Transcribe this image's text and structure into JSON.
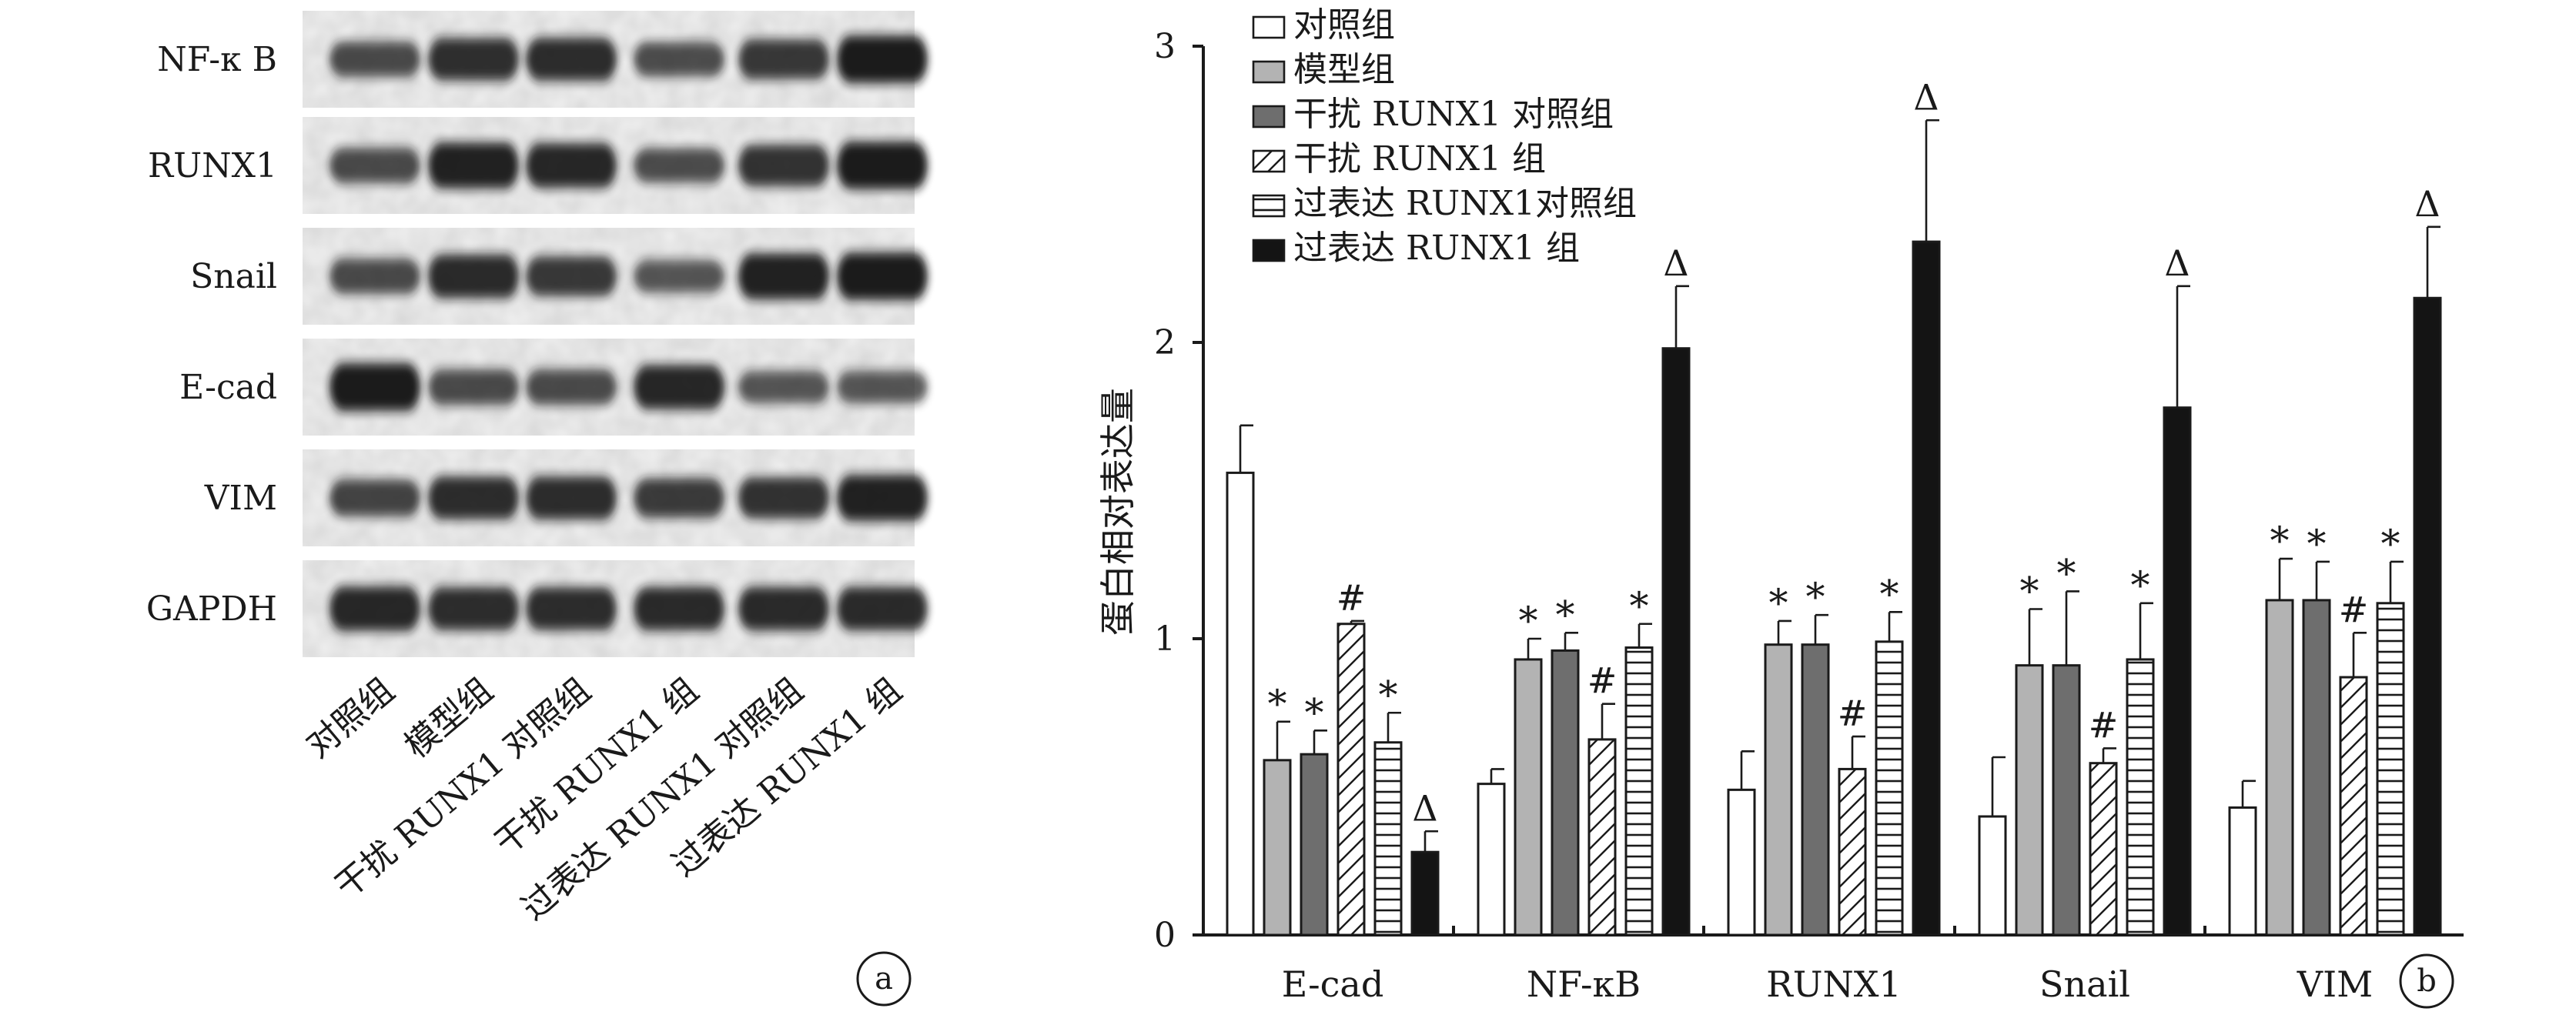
{
  "panel_a": {
    "panel_label": "a",
    "row_labels": [
      "NF-κ B",
      "RUNX1",
      "Snail",
      "E-cad",
      "VIM",
      "GAPDH"
    ],
    "lane_labels": [
      "对照组",
      "模型组",
      "干扰 RUNX1 对照组",
      "干扰 RUNX1 组",
      "过表达 RUNX1 对照组",
      "过表达 RUNX1 组"
    ],
    "band_intensity": [
      [
        0.55,
        0.78,
        0.8,
        0.52,
        0.7,
        0.95
      ],
      [
        0.55,
        0.9,
        0.85,
        0.52,
        0.75,
        0.95
      ],
      [
        0.55,
        0.82,
        0.7,
        0.45,
        0.9,
        0.95
      ],
      [
        0.95,
        0.55,
        0.55,
        0.85,
        0.45,
        0.45
      ],
      [
        0.6,
        0.8,
        0.8,
        0.68,
        0.75,
        0.9
      ],
      [
        0.85,
        0.8,
        0.8,
        0.82,
        0.82,
        0.82
      ]
    ],
    "blot_color": "#161616"
  },
  "panel_b": {
    "panel_label": "b"
  },
  "chart_data": {
    "type": "bar",
    "ylabel": "蛋白相对表达量",
    "xlabel": "",
    "title": "",
    "ylim": [
      0,
      3
    ],
    "yticks": [
      "0",
      "1",
      "2",
      "3"
    ],
    "categories": [
      "E-cad",
      "NF-κB",
      "RUNX1",
      "Snail",
      "VIM"
    ],
    "legend_position": "top-left",
    "series": [
      {
        "name": "对照组",
        "fill": "open",
        "values": [
          1.56,
          0.51,
          0.49,
          0.4,
          0.43
        ],
        "errors": [
          0.16,
          0.05,
          0.13,
          0.2,
          0.09
        ],
        "markers": [
          "",
          "",
          "",
          "",
          ""
        ]
      },
      {
        "name": "模型组",
        "fill": "gray",
        "values": [
          0.59,
          0.93,
          0.98,
          0.91,
          1.13
        ],
        "errors": [
          0.13,
          0.07,
          0.08,
          0.19,
          0.14
        ],
        "markers": [
          "*",
          "*",
          "*",
          "*",
          "*"
        ]
      },
      {
        "name": "干扰 RUNX1 对照组",
        "fill": "darkgray",
        "values": [
          0.61,
          0.96,
          0.98,
          0.91,
          1.13
        ],
        "errors": [
          0.08,
          0.06,
          0.1,
          0.25,
          0.13
        ],
        "markers": [
          "*",
          "*",
          "*",
          "*",
          "*"
        ]
      },
      {
        "name": "干扰 RUNX1 组",
        "fill": "diagonal",
        "values": [
          1.05,
          0.66,
          0.56,
          0.58,
          0.87
        ],
        "errors": [
          0.01,
          0.12,
          0.11,
          0.05,
          0.15
        ],
        "markers": [
          "#",
          "#",
          "#",
          "#",
          "#"
        ]
      },
      {
        "name": "过表达 RUNX1对照组",
        "fill": "horizontal",
        "values": [
          0.65,
          0.97,
          0.99,
          0.93,
          1.12
        ],
        "errors": [
          0.1,
          0.08,
          0.1,
          0.19,
          0.14
        ],
        "markers": [
          "*",
          "*",
          "*",
          "*",
          "*"
        ]
      },
      {
        "name": "过表达 RUNX1 组",
        "fill": "black",
        "values": [
          0.28,
          1.98,
          2.34,
          1.78,
          2.15
        ],
        "errors": [
          0.07,
          0.21,
          0.41,
          0.41,
          0.24
        ],
        "markers": [
          "Δ",
          "Δ",
          "Δ",
          "Δ",
          "Δ"
        ]
      }
    ]
  },
  "colors": {
    "ink": "#1a1a1a",
    "gray": "#b3b3b3",
    "darkgray": "#6e6e6e",
    "black": "#141414",
    "blot_background": "#f0f0f0"
  }
}
